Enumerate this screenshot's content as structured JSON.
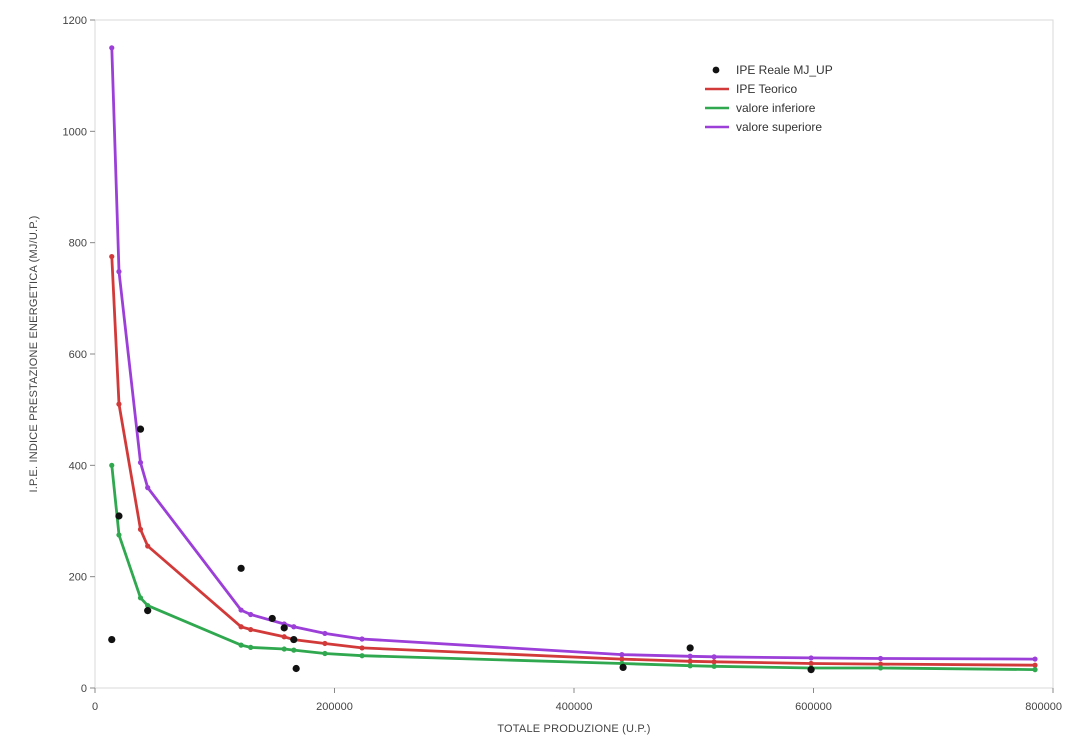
{
  "chart_data": {
    "type": "line",
    "title": "",
    "xlabel": "TOTALE PRODUZIONE (U.P.)",
    "ylabel": "I.P.E. INDICE PRESTAZIONE ENERGETICA (MJ/U.P.)",
    "xlim": [
      0,
      800000
    ],
    "ylim": [
      0,
      1200
    ],
    "xticks": [
      0,
      200000,
      400000,
      600000,
      800000
    ],
    "yticks": [
      0,
      200,
      400,
      600,
      800,
      1000,
      1200
    ],
    "xtick_labels": [
      "0",
      "200000",
      "400000",
      "600000",
      "800000"
    ],
    "ytick_labels": [
      "0",
      "200",
      "400",
      "600",
      "800",
      "1000",
      "1200"
    ],
    "grid": false,
    "legend_position": "top-right",
    "x": [
      14000,
      20000,
      38000,
      44000,
      122000,
      130000,
      158000,
      166000,
      192000,
      223000,
      440000,
      497000,
      517000,
      598000,
      656000,
      785000
    ],
    "series": [
      {
        "name": "IPE Reale MJ_UP",
        "kind": "scatter",
        "color": "#111111",
        "points": [
          [
            14000,
            87
          ],
          [
            20000,
            309
          ],
          [
            38000,
            465
          ],
          [
            44000,
            139
          ],
          [
            122000,
            215
          ],
          [
            148000,
            125
          ],
          [
            158000,
            108
          ],
          [
            166000,
            87
          ],
          [
            168000,
            35
          ],
          [
            441000,
            37
          ],
          [
            497000,
            72
          ],
          [
            598000,
            33
          ]
        ]
      },
      {
        "name": "IPE Teorico",
        "kind": "line",
        "color": "#d23a3a",
        "values": [
          775,
          510,
          285,
          255,
          110,
          105,
          92,
          87,
          80,
          72,
          52,
          48,
          47,
          44,
          43,
          41
        ]
      },
      {
        "name": "valore inferiore",
        "kind": "line",
        "color": "#2fa84f",
        "values": [
          400,
          275,
          162,
          148,
          77,
          73,
          70,
          68,
          62,
          58,
          44,
          40,
          39,
          36,
          36,
          33
        ]
      },
      {
        "name": "valore superiore",
        "kind": "line",
        "color": "#9b3fd8",
        "values": [
          1150,
          748,
          405,
          360,
          140,
          132,
          115,
          110,
          98,
          88,
          60,
          57,
          56,
          54,
          53,
          52
        ]
      }
    ]
  }
}
